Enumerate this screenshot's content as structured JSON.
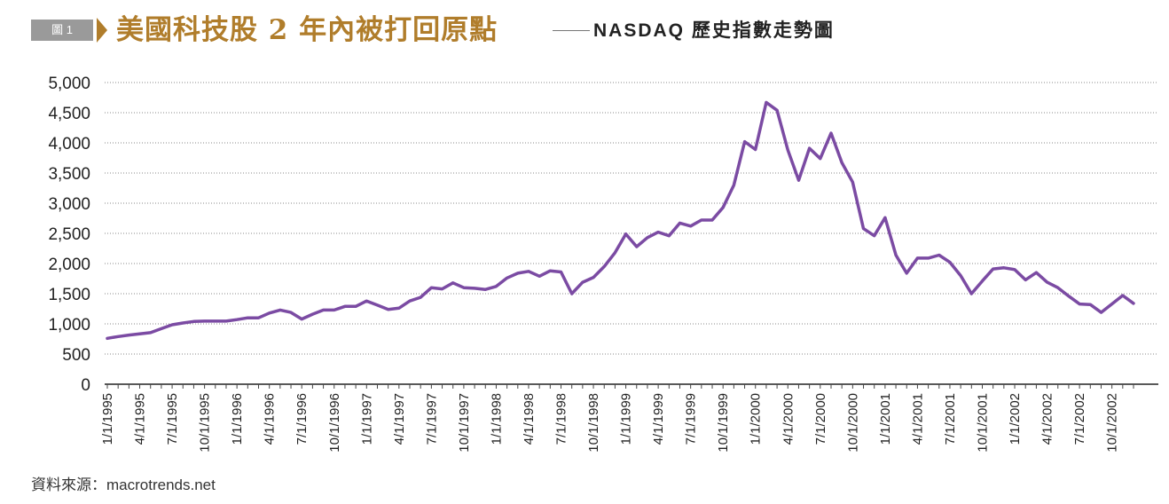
{
  "header": {
    "figure_tag": "圖 1",
    "title": "美國科技股 2 年內被打回原點",
    "subtitle": "NASDAQ 歷史指數走勢圖",
    "accent_color": "#b07d2b",
    "tag_color": "#9a9a9a"
  },
  "source": "資料來源：macrotrends.net",
  "chart_data": {
    "type": "line",
    "title": "",
    "xlabel": "",
    "ylabel": "",
    "ylim": [
      0,
      5000
    ],
    "y_ticks": [
      "0",
      "500",
      "1,000",
      "1,500",
      "2,000",
      "2,500",
      "3,000",
      "3,500",
      "4,000",
      "4,500",
      "5,000"
    ],
    "grid": "horizontal dotted",
    "line_color": "#7b4ba3",
    "x_tick_labels": [
      "1/1/1995",
      "4/1/1995",
      "7/1/1995",
      "10/1/1995",
      "1/1/1996",
      "4/1/1996",
      "7/1/1996",
      "10/1/1996",
      "1/1/1997",
      "4/1/1997",
      "7/1/1997",
      "10/1/1997",
      "1/1/1998",
      "4/1/1998",
      "7/1/1998",
      "10/1/1998",
      "1/1/1999",
      "4/1/1999",
      "7/1/1999",
      "10/1/1999",
      "1/1/2000",
      "4/1/2000",
      "7/1/2000",
      "10/1/2000",
      "1/1/2001",
      "4/1/2001",
      "7/1/2001",
      "10/1/2001",
      "1/1/2002",
      "4/1/2002",
      "7/1/2002",
      "10/1/2002"
    ],
    "series": [
      {
        "values": [
          760,
          790,
          815,
          835,
          855,
          920,
          985,
          1015,
          1040,
          1045,
          1045,
          1045,
          1070,
          1100,
          1100,
          1180,
          1230,
          1190,
          1080,
          1160,
          1230,
          1230,
          1290,
          1290,
          1380,
          1310,
          1240,
          1260,
          1380,
          1440,
          1600,
          1580,
          1680,
          1600,
          1590,
          1570,
          1620,
          1760,
          1840,
          1870,
          1790,
          1880,
          1860,
          1500,
          1690,
          1770,
          1950,
          2180,
          2490,
          2280,
          2430,
          2520,
          2460,
          2670,
          2620,
          2720,
          2720,
          2930,
          3300,
          4020,
          3890,
          4670,
          4540,
          3880,
          3380,
          3910,
          3740,
          4160,
          3670,
          3350,
          2580,
          2460,
          2760,
          2140,
          1840,
          2090,
          2090,
          2140,
          2020,
          1800,
          1500,
          1710,
          1910,
          1930,
          1900,
          1730,
          1850,
          1690,
          1600,
          1460,
          1330,
          1320,
          1190,
          1330,
          1470,
          1340
        ]
      }
    ]
  }
}
